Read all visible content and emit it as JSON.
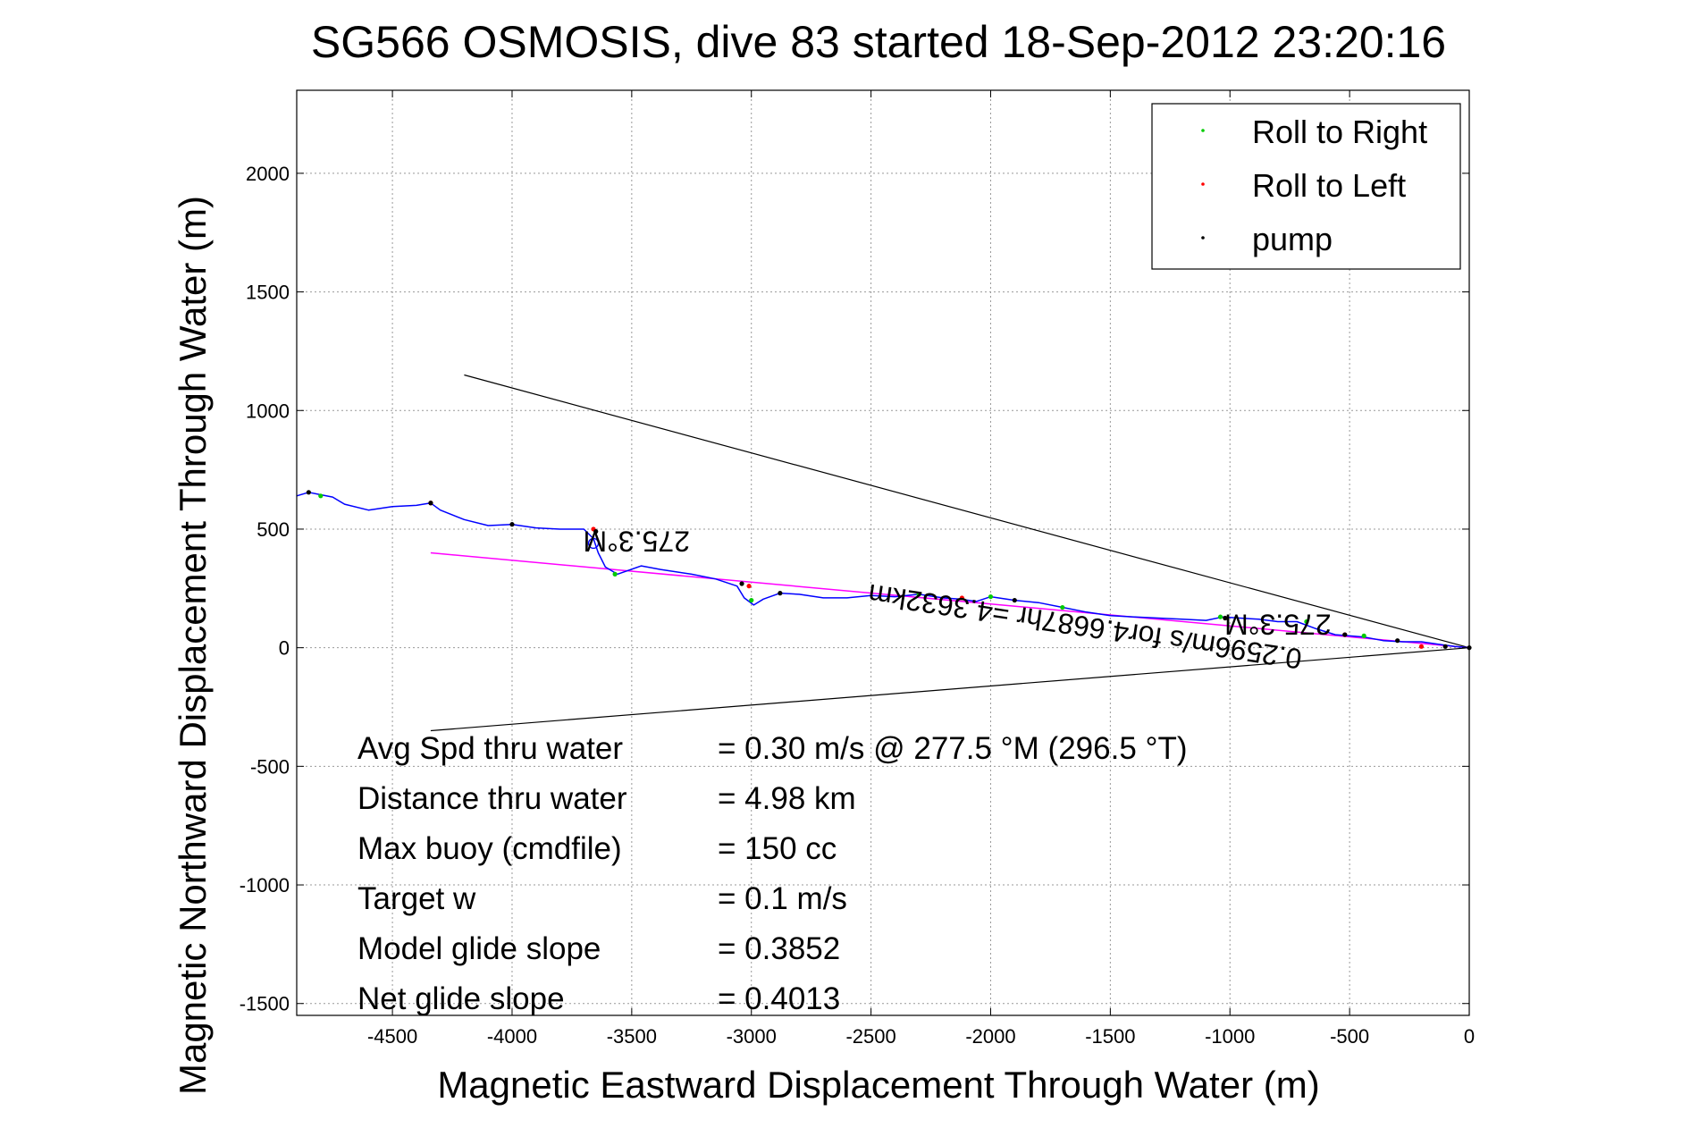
{
  "chart_data": {
    "type": "line",
    "title": "SG566 OSMOSIS, dive 83 started 18-Sep-2012 23:20:16",
    "xlabel": "Magnetic Eastward Displacement Through Water (m)",
    "ylabel": "Magnetic Northward Displacement Through Water (m)",
    "xlim": [
      -4900,
      0
    ],
    "ylim": [
      -1550,
      2350
    ],
    "xticks": [
      -4500,
      -4000,
      -3500,
      -3000,
      -2500,
      -2000,
      -1500,
      -1000,
      -500,
      0
    ],
    "yticks": [
      -1500,
      -1000,
      -500,
      0,
      500,
      1000,
      1500,
      2000
    ],
    "xtick_labels": [
      "-4500",
      "-4000",
      "-3500",
      "-3000",
      "-2500",
      "-2000",
      "-1500",
      "-1000",
      "-500",
      "0"
    ],
    "ytick_labels": [
      "-1500",
      "-1000",
      "-500",
      "0",
      "500",
      "1000",
      "1500",
      "2000"
    ],
    "grid": true,
    "legend_position": "top-right",
    "legend": [
      {
        "label": "Roll to Right",
        "color": "#00cc00"
      },
      {
        "label": "Roll to Left",
        "color": "#ff0000"
      },
      {
        "label": "pump",
        "color": "#000000"
      }
    ],
    "colors": {
      "track": "#0000ff",
      "fit_line": "#ff00ff",
      "cone": "#000000",
      "grid": "#999999"
    },
    "series": [
      {
        "name": "",
        "role": "track",
        "x": [
          0,
          -60,
          -130,
          -200,
          -280,
          -360,
          -440,
          -500,
          -560,
          -640,
          -720,
          -800,
          -880,
          -960,
          -1030,
          -1100,
          -1200,
          -1300,
          -1400,
          -1500,
          -1600,
          -1700,
          -1800,
          -1900,
          -2000,
          -2060,
          -2130,
          -2200,
          -2300,
          -2400,
          -2500,
          -2600,
          -2700,
          -2800,
          -2880,
          -2950,
          -2990,
          -3030,
          -3060,
          -3150,
          -3250,
          -3380,
          -3460,
          -3560,
          -3610,
          -3640,
          -3660,
          -3700,
          -3800,
          -3900,
          -4000,
          -4100,
          -4200,
          -4300,
          -4340,
          -4400,
          -4500,
          -4600,
          -4700,
          -4750,
          -4800,
          -4850,
          -4900
        ],
        "y": [
          0,
          5,
          15,
          25,
          25,
          30,
          45,
          50,
          55,
          80,
          110,
          110,
          120,
          125,
          130,
          115,
          120,
          125,
          130,
          135,
          150,
          170,
          190,
          200,
          215,
          195,
          205,
          210,
          225,
          215,
          220,
          210,
          210,
          225,
          230,
          205,
          180,
          210,
          260,
          290,
          310,
          330,
          345,
          310,
          340,
          400,
          460,
          500,
          500,
          505,
          520,
          515,
          540,
          580,
          610,
          600,
          595,
          580,
          605,
          635,
          645,
          655,
          640
        ]
      },
      {
        "name": "",
        "role": "fit_line",
        "x": [
          0,
          -4340
        ],
        "y": [
          0,
          400
        ]
      },
      {
        "name": "",
        "role": "cone_upper",
        "x": [
          0,
          -4200
        ],
        "y": [
          0,
          1150
        ]
      },
      {
        "name": "",
        "role": "cone_lower",
        "x": [
          0,
          -4340
        ],
        "y": [
          0,
          -350
        ]
      },
      {
        "name": "Roll to Right",
        "role": "roll_right",
        "x": [
          -2300,
          -2000,
          -1700,
          -1040,
          -680,
          -440,
          -3570,
          -3000,
          -4800
        ],
        "y": [
          225,
          215,
          170,
          130,
          110,
          50,
          310,
          200,
          640
        ]
      },
      {
        "name": "Roll to Left",
        "role": "roll_left",
        "x": [
          -4340,
          -3660,
          -2120,
          -1020,
          -520,
          -200,
          -3010
        ],
        "y": [
          610,
          500,
          210,
          125,
          55,
          5,
          260
        ]
      },
      {
        "name": "pump",
        "role": "pump",
        "x": [
          -4850,
          -4340,
          -4000,
          -3650,
          -3040,
          -2880,
          -1900,
          -1020,
          -520,
          -300,
          -100,
          0
        ],
        "y": [
          655,
          610,
          520,
          490,
          270,
          230,
          200,
          125,
          55,
          30,
          5,
          0
        ]
      }
    ],
    "markers": [
      {
        "name": "open-circle",
        "x": -3660,
        "y": 440
      }
    ],
    "annotations": [
      {
        "text": "275.3°M",
        "x": -3480,
        "y": 490,
        "rotated_180": true
      },
      {
        "text": "0.2596m/s for4.6687hr =4.3632km",
        "x": -1600,
        "y": 130,
        "rotated_180": true,
        "angle_deg": 8.6
      },
      {
        "text": "275.3°M",
        "x": -800,
        "y": 140,
        "rotated_180": true
      }
    ],
    "stats": [
      {
        "label": "Avg Spd thru water",
        "value": "=  0.30 m/s @ 277.5 °M (296.5 °T)"
      },
      {
        "label": "Distance thru water",
        "value": "=  4.98 km"
      },
      {
        "label": "Max buoy (cmdfile)",
        "value": "= 150 cc"
      },
      {
        "label": "Target w",
        "value": "= 0.1 m/s"
      },
      {
        "label": "Model glide slope",
        "value": "= 0.3852"
      },
      {
        "label": "Net glide slope",
        "value": "= 0.4013"
      }
    ]
  }
}
